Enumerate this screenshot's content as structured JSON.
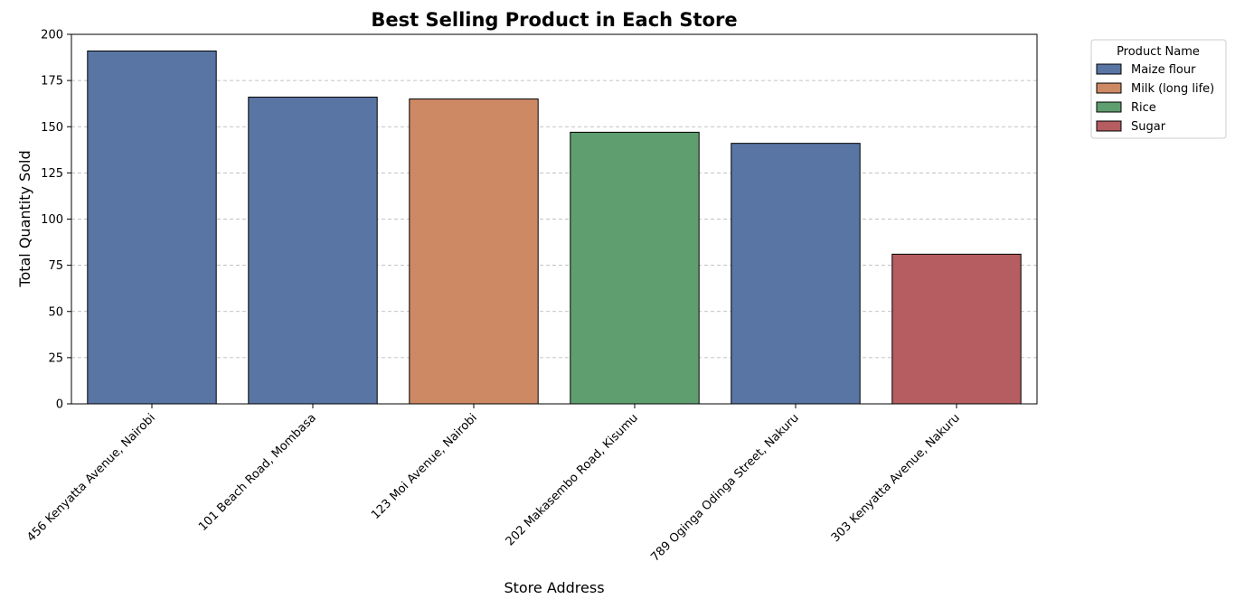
{
  "chart_data": {
    "type": "bar",
    "title": "Best Selling Product in Each Store",
    "xlabel": "Store Address",
    "ylabel": "Total Quantity Sold",
    "ylim": [
      0,
      200
    ],
    "yticks": [
      0,
      25,
      50,
      75,
      100,
      125,
      150,
      175,
      200
    ],
    "grid": "horizontal dashed",
    "categories": [
      "456 Kenyatta Avenue, Nairobi",
      "101 Beach Road, Mombasa",
      "123 Moi Avenue, Nairobi",
      "202 Makasembo Road, Kisumu",
      "789 Oginga Odinga Street, Nakuru",
      "303 Kenyatta Avenue, Nakuru"
    ],
    "values": [
      191,
      166,
      165,
      147,
      141,
      81
    ],
    "products": [
      "Maize flour",
      "Maize flour",
      "Milk (long life)",
      "Rice",
      "Maize flour",
      "Sugar"
    ],
    "legend": {
      "title": "Product Name",
      "placement": "outside top-right",
      "entries": [
        {
          "name": "Maize flour",
          "color": "#5975a4"
        },
        {
          "name": "Milk (long life)",
          "color": "#cc8963"
        },
        {
          "name": "Rice",
          "color": "#5f9e6e"
        },
        {
          "name": "Sugar",
          "color": "#b55d60"
        }
      ]
    }
  }
}
